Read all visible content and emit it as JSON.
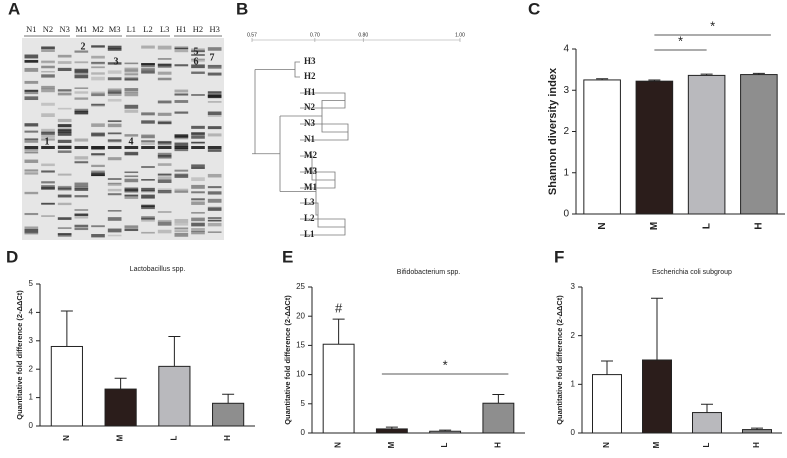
{
  "panel_labels": [
    "A",
    "B",
    "C",
    "D",
    "E",
    "F"
  ],
  "gel": {
    "lane_labels": [
      "N1",
      "N2",
      "N3",
      "M1",
      "M2",
      "M3",
      "L1",
      "L2",
      "L3",
      "H1",
      "H2",
      "H3"
    ],
    "band_labels": [
      "1",
      "2",
      "3",
      "4",
      "5",
      "6",
      "7"
    ]
  },
  "dendrogram": {
    "xlim": [
      0.57,
      1
    ],
    "xticks": [
      {
        "value": 0.57,
        "label": "0.57"
      },
      {
        "value": 0.7,
        "label": "0.70"
      },
      {
        "value": 0.8,
        "label": "0.80"
      },
      {
        "value": 1,
        "label": "1.00"
      }
    ],
    "leaves": [
      "H3",
      "H2",
      "H1",
      "N2",
      "N3",
      "N1",
      "M2",
      "M3",
      "M1",
      "L3",
      "L2",
      "L1"
    ]
  },
  "chart_data": [
    {
      "type": "bar",
      "ylabel": "Shannon diversity index",
      "categories": [
        "N",
        "M",
        "L",
        "H"
      ],
      "values": [
        3.25,
        3.22,
        3.36,
        3.38
      ],
      "errors": [
        0.03,
        0.03,
        0.03,
        0.03
      ],
      "colors": [
        "#ffffff",
        "#2b1d1b",
        "#b9b9bd",
        "#8e8e8e"
      ],
      "ylim": [
        0,
        4
      ],
      "yticks": [
        0,
        1,
        2,
        3,
        4
      ],
      "significance": [
        {
          "from": "M",
          "to": "L",
          "label": "*"
        },
        {
          "from": "M",
          "to": "H",
          "label": "*"
        }
      ]
    },
    {
      "type": "bar",
      "title": "Lactobacillus spp.",
      "ylabel": "Quantitative fold difference (2-ΔΔCt)",
      "categories": [
        "N",
        "M",
        "L",
        "H"
      ],
      "values": [
        2.8,
        1.3,
        2.1,
        0.8
      ],
      "errors": [
        1.25,
        0.38,
        1.05,
        0.32
      ],
      "colors": [
        "#ffffff",
        "#2b1d1b",
        "#b9b9bd",
        "#8e8e8e"
      ],
      "ylim": [
        0,
        5
      ],
      "yticks": [
        0,
        1,
        2,
        3,
        4,
        5
      ]
    },
    {
      "type": "bar",
      "title": "Bifidobacterium spp.",
      "ylabel": "Quantitative fold difference (2-ΔΔCt)",
      "categories": [
        "N",
        "M",
        "L",
        "H"
      ],
      "values": [
        15.2,
        0.7,
        0.3,
        5.1
      ],
      "errors": [
        4.3,
        0.3,
        0.2,
        1.5
      ],
      "colors": [
        "#ffffff",
        "#2b1d1b",
        "#b9b9bd",
        "#8e8e8e"
      ],
      "ylim": [
        0,
        25
      ],
      "yticks": [
        0,
        5,
        10,
        15,
        20,
        25
      ],
      "bar_annotations": [
        {
          "category": "N",
          "label": "#"
        }
      ],
      "significance": [
        {
          "from": "M",
          "to": "H",
          "label": "*"
        }
      ]
    },
    {
      "type": "bar",
      "title": "Escherichia coli subgroup",
      "ylabel": "Quantitative fold difference (2-ΔΔCt)",
      "categories": [
        "N",
        "M",
        "L",
        "H"
      ],
      "values": [
        1.2,
        1.5,
        0.42,
        0.07
      ],
      "errors": [
        0.28,
        1.27,
        0.17,
        0.03
      ],
      "colors": [
        "#ffffff",
        "#2b1d1b",
        "#b9b9bd",
        "#8e8e8e"
      ],
      "ylim": [
        0,
        3
      ],
      "yticks": [
        0,
        1,
        2,
        3
      ]
    }
  ]
}
